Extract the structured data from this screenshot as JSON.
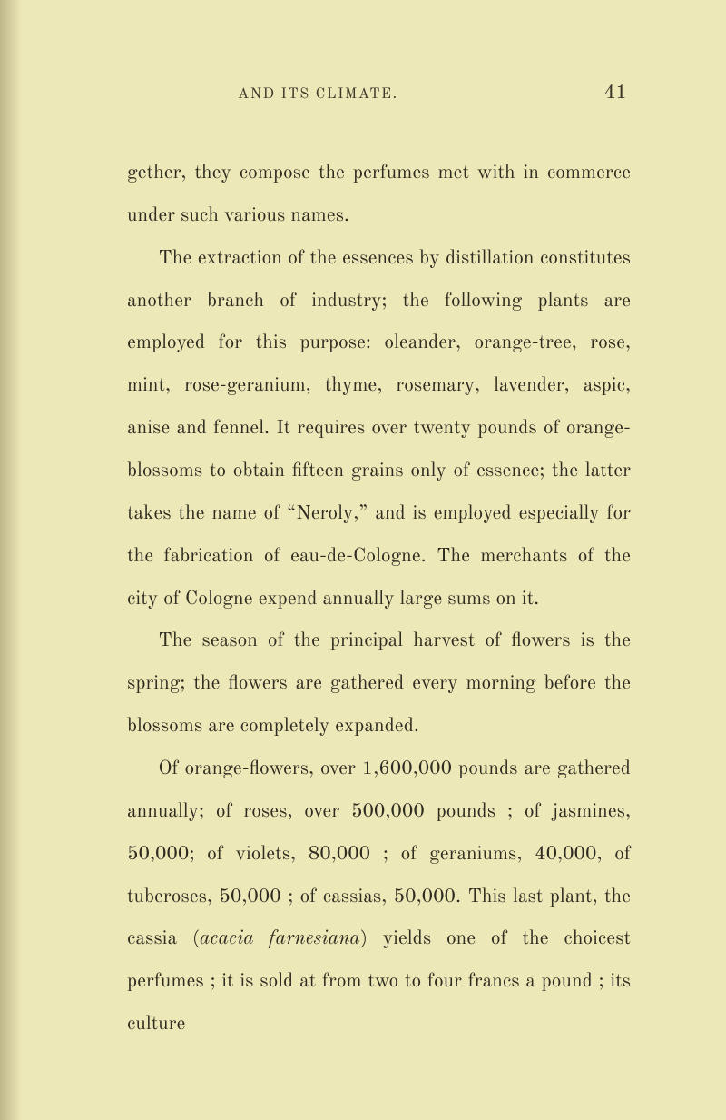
{
  "header": {
    "running_head": "AND ITS CLIMATE.",
    "page_number": "41"
  },
  "paragraphs": {
    "p1": "gether, they compose the perfumes met with in commerce under such various names.",
    "p2": "The extraction of the essences by distillation constitutes another branch of industry; the fol­lowing plants are employed for this purpose: oleander, orange-tree, rose, mint, rose-geranium, thyme, rosemary, lavender, aspic, anise and fennel. It requires over twenty pounds of orange-blossoms to obtain fifteen grains only of essence; the latter takes the name of “Neroly,” and is employed especially for the fabrication of eau-de-Cologne. The merchants of the city of Cologne expend annually large sums on it.",
    "p3": "The season of the principal harvest of flowers is the spring; the flowers are gathered every morning before the blossoms are completely ex­panded.",
    "p4_a": "Of orange-flowers, over 1,600,000 pounds are gathered annually; of roses, over 500,000 pounds ; of jasmines, 50,000; of violets, 80,000 ; of gera­niums, 40,000, of tuberoses, 50,000 ; of cassias, 50,000. This last plant, the cassia (",
    "p4_em": "acacia far­nesiana",
    "p4_b": ") yields one of the choicest perfumes ; it is sold at from two to four francs a pound ; its culture"
  }
}
